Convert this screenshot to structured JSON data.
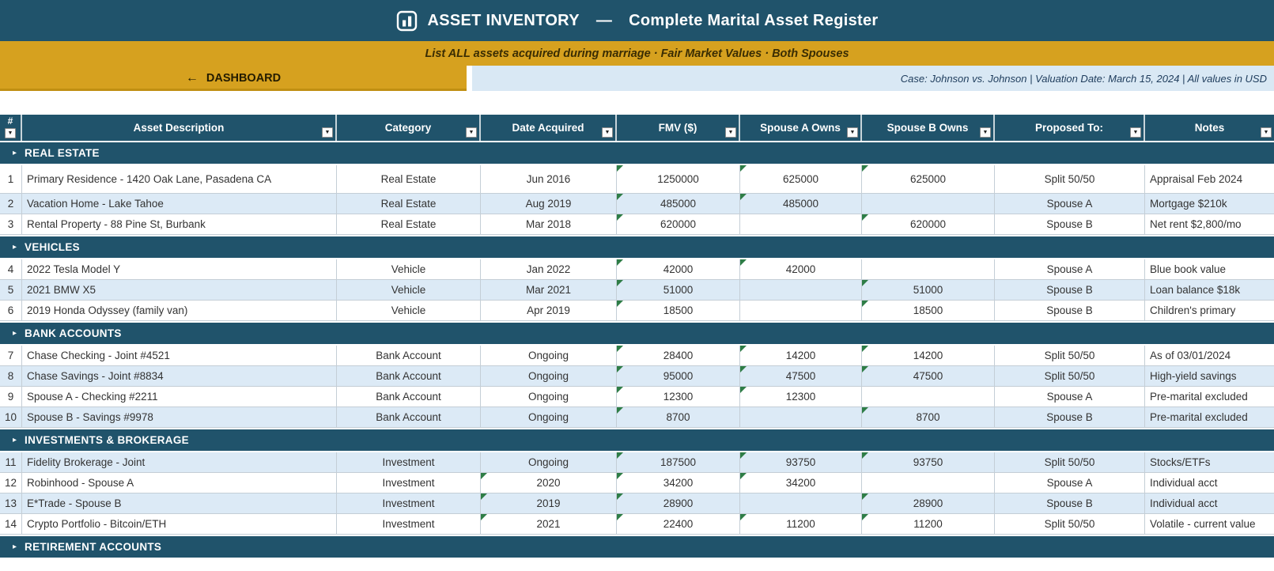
{
  "colors": {
    "header_blue": "#20536B",
    "gold": "#D6A11F",
    "gold_dark": "#C08F12",
    "light_blue_bar": "#D9E8F4",
    "row_shaded": "#DCEAF6",
    "indicator_green": "#2E7D46",
    "grid_line": "#C4CED6",
    "text_dark": "#333333",
    "info_text": "#1E3C5C"
  },
  "icons": {
    "title_icon": "bar-chart-icon",
    "back_arrow": "←",
    "section_marker": "▸",
    "filter_dropdown": "▼"
  },
  "header": {
    "title_main": "ASSET INVENTORY",
    "title_sep": "—",
    "title_sub": "Complete Marital Asset Register"
  },
  "instruction_bar": {
    "text": "List ALL assets acquired during marriage · Fair Market Values · Both Spouses"
  },
  "nav": {
    "dashboard_label": "DASHBOARD"
  },
  "case_info": {
    "text": "Case: Johnson vs. Johnson  |  Valuation Date: March 15, 2024  |  All values in USD"
  },
  "table": {
    "columns": [
      "#",
      "Asset Description",
      "Category",
      "Date Acquired",
      "FMV ($)",
      "Spouse A Owns",
      "Spouse B Owns",
      "Proposed To:",
      "Notes"
    ],
    "sections": [
      {
        "label": "REAL ESTATE",
        "rows": [
          [
            "1",
            "Primary Residence - 1420 Oak Lane, Pasadena CA",
            "Real Estate",
            "Jun 2016",
            "1250000",
            "625000",
            "625000",
            "Split 50/50",
            "Appraisal Feb 2024"
          ],
          [
            "2",
            "Vacation Home - Lake Tahoe",
            "Real Estate",
            "Aug 2019",
            "485000",
            "485000",
            "",
            "Spouse A",
            "Mortgage $210k"
          ],
          [
            "3",
            "Rental Property - 88 Pine St, Burbank",
            "Real Estate",
            "Mar 2018",
            "620000",
            "",
            "620000",
            "Spouse B",
            "Net rent $2,800/mo"
          ]
        ]
      },
      {
        "label": "VEHICLES",
        "rows": [
          [
            "4",
            "2022 Tesla Model Y",
            "Vehicle",
            "Jan 2022",
            "42000",
            "42000",
            "",
            "Spouse A",
            "Blue book value"
          ],
          [
            "5",
            "2021 BMW X5",
            "Vehicle",
            "Mar 2021",
            "51000",
            "",
            "51000",
            "Spouse B",
            "Loan balance $18k"
          ],
          [
            "6",
            "2019 Honda Odyssey (family van)",
            "Vehicle",
            "Apr 2019",
            "18500",
            "",
            "18500",
            "Spouse B",
            "Children's primary"
          ]
        ]
      },
      {
        "label": "BANK ACCOUNTS",
        "rows": [
          [
            "7",
            "Chase Checking - Joint #4521",
            "Bank Account",
            "Ongoing",
            "28400",
            "14200",
            "14200",
            "Split 50/50",
            "As of 03/01/2024"
          ],
          [
            "8",
            "Chase Savings - Joint #8834",
            "Bank Account",
            "Ongoing",
            "95000",
            "47500",
            "47500",
            "Split 50/50",
            "High-yield savings"
          ],
          [
            "9",
            "Spouse A - Checking #2211",
            "Bank Account",
            "Ongoing",
            "12300",
            "12300",
            "",
            "Spouse A",
            "Pre-marital excluded"
          ],
          [
            "10",
            "Spouse B - Savings #9978",
            "Bank Account",
            "Ongoing",
            "8700",
            "",
            "8700",
            "Spouse B",
            "Pre-marital excluded"
          ]
        ]
      },
      {
        "label": "INVESTMENTS & BROKERAGE",
        "rows": [
          [
            "11",
            "Fidelity Brokerage - Joint",
            "Investment",
            "Ongoing",
            "187500",
            "93750",
            "93750",
            "Split 50/50",
            "Stocks/ETFs"
          ],
          [
            "12",
            "Robinhood - Spouse A",
            "Investment",
            "2020",
            "34200",
            "34200",
            "",
            "Spouse A",
            "Individual acct"
          ],
          [
            "13",
            "E*Trade - Spouse B",
            "Investment",
            "2019",
            "28900",
            "",
            "28900",
            "Spouse B",
            "Individual acct"
          ],
          [
            "14",
            "Crypto Portfolio - Bitcoin/ETH",
            "Investment",
            "2021",
            "22400",
            "11200",
            "11200",
            "Split 50/50",
            "Volatile - current value"
          ]
        ]
      },
      {
        "label": "RETIREMENT ACCOUNTS",
        "rows": []
      }
    ]
  }
}
